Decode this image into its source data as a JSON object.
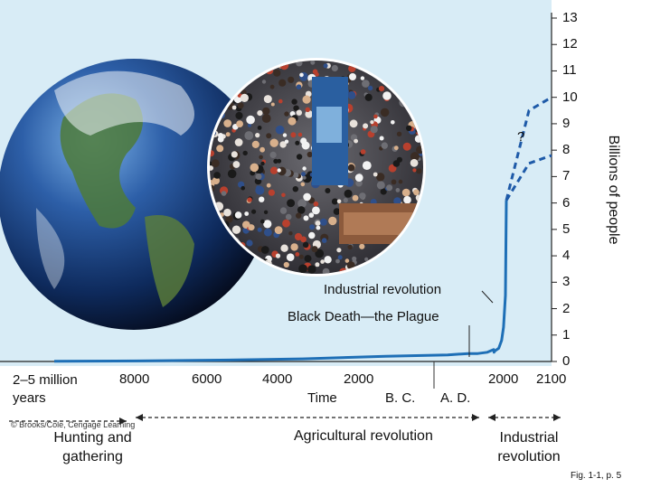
{
  "chart_data": {
    "type": "line",
    "ylabel": "Billions of people",
    "ylim": [
      0,
      13
    ],
    "yticks": [
      "0",
      "1",
      "2",
      "3",
      "4",
      "5",
      "6",
      "7",
      "8",
      "9",
      "10",
      "11",
      "12",
      "13"
    ],
    "xticks": [
      "2–5 million years",
      "8000",
      "6000",
      "4000",
      "2000",
      "2000",
      "2100"
    ],
    "era_labels": {
      "bc": "B. C.",
      "ad": "A. D.",
      "time": "Time"
    },
    "series": [
      {
        "values_years": [
          -10000,
          -8000,
          -6000,
          -4000,
          -2000,
          -500,
          0,
          500,
          1000,
          1340,
          1350,
          1400,
          1600,
          1750,
          1850,
          1950,
          2000
        ],
        "values": [
          0.01,
          0.02,
          0.05,
          0.1,
          0.2,
          0.25,
          0.3,
          0.3,
          0.35,
          0.45,
          0.35,
          0.4,
          0.5,
          0.8,
          1.3,
          2.5,
          6.1
        ]
      }
    ],
    "projections": [
      {
        "x": [
          2000,
          2050,
          2100
        ],
        "y": [
          6.1,
          7.5,
          7.8
        ]
      },
      {
        "x": [
          2000,
          2050,
          2100
        ],
        "y": [
          6.1,
          9.5,
          10
        ]
      }
    ],
    "projection_label": "?",
    "annotations": [
      "Industrial revolution",
      "Black Death—the Plague"
    ]
  },
  "eras": {
    "hunting": "Hunting and gathering",
    "agricultural": "Agricultural revolution",
    "industrial": "Industrial revolution"
  },
  "credit": "© Brooks/Cole, Cengage Learning",
  "fig_ref": "Fig. 1-1, p. 5",
  "colors": {
    "plot_bg": "#d8ecf6",
    "line": "#1e6fb6",
    "dash": "#1e5aa8"
  }
}
